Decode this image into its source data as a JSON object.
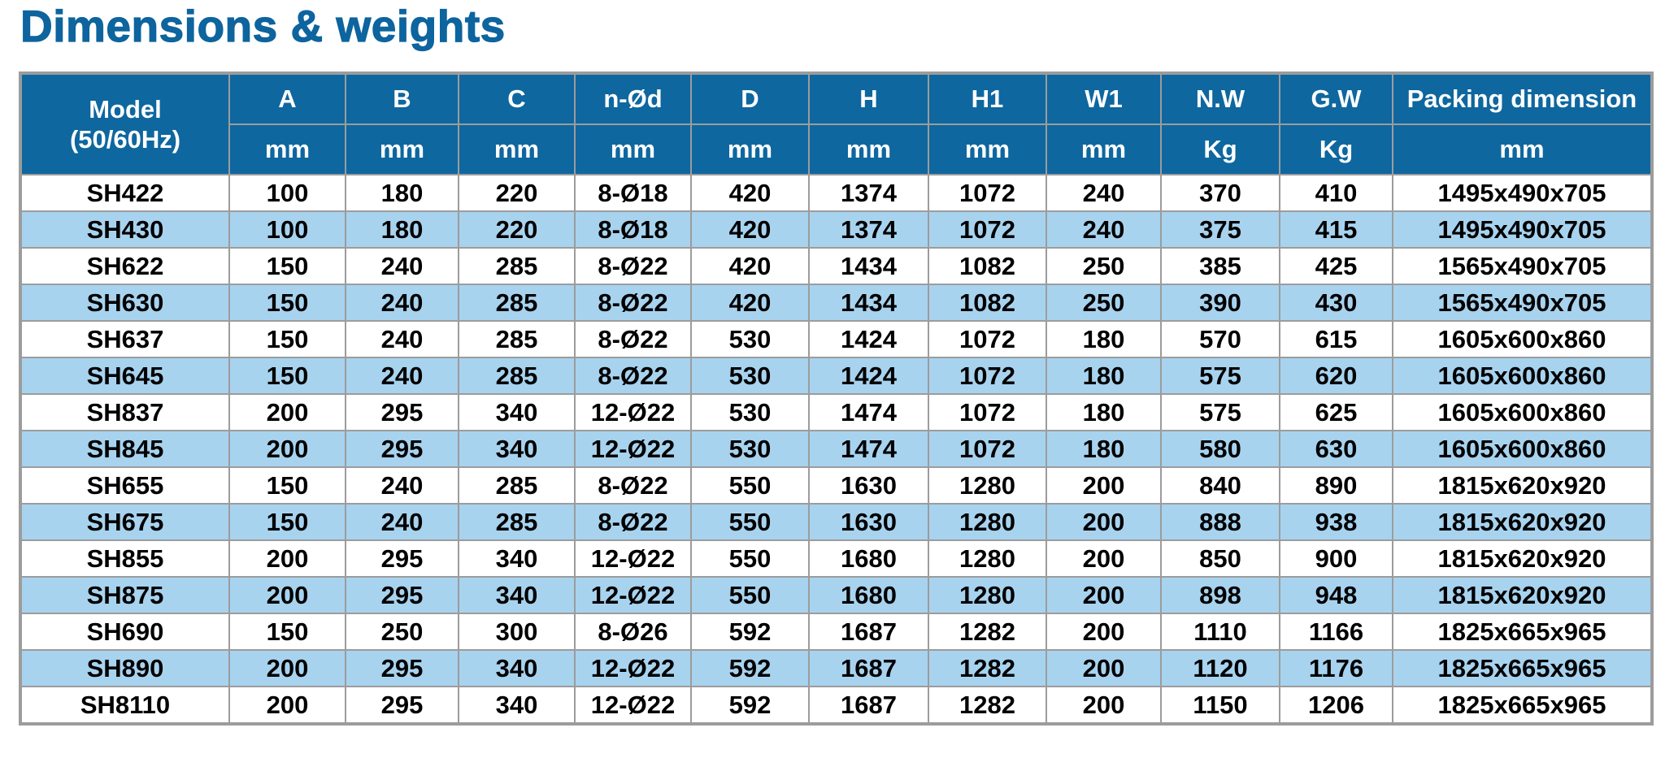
{
  "title": "Dimensions & weights",
  "colors": {
    "title": "#0d649e",
    "header_bg": "#0e679f",
    "header_text": "#ffffff",
    "stripe_bg": "#a8d3ef",
    "row_bg": "#ffffff",
    "border": "#9c9c9c",
    "cell_text": "#000000"
  },
  "table": {
    "model_header": {
      "line1": "Model",
      "line2": "(50/60Hz)"
    },
    "columns": [
      {
        "label": "A",
        "unit": "mm"
      },
      {
        "label": "B",
        "unit": "mm"
      },
      {
        "label": "C",
        "unit": "mm"
      },
      {
        "label": "n-Ød",
        "unit": "mm"
      },
      {
        "label": "D",
        "unit": "mm"
      },
      {
        "label": "H",
        "unit": "mm"
      },
      {
        "label": "H1",
        "unit": "mm"
      },
      {
        "label": "W1",
        "unit": "mm"
      },
      {
        "label": "N.W",
        "unit": "Kg"
      },
      {
        "label": "G.W",
        "unit": "Kg"
      },
      {
        "label": "Packing dimension",
        "unit": "mm"
      }
    ],
    "rows": [
      {
        "model": "SH422",
        "values": [
          "100",
          "180",
          "220",
          "8-Ø18",
          "420",
          "1374",
          "1072",
          "240",
          "370",
          "410",
          "1495x490x705"
        ]
      },
      {
        "model": "SH430",
        "values": [
          "100",
          "180",
          "220",
          "8-Ø18",
          "420",
          "1374",
          "1072",
          "240",
          "375",
          "415",
          "1495x490x705"
        ]
      },
      {
        "model": "SH622",
        "values": [
          "150",
          "240",
          "285",
          "8-Ø22",
          "420",
          "1434",
          "1082",
          "250",
          "385",
          "425",
          "1565x490x705"
        ]
      },
      {
        "model": "SH630",
        "values": [
          "150",
          "240",
          "285",
          "8-Ø22",
          "420",
          "1434",
          "1082",
          "250",
          "390",
          "430",
          "1565x490x705"
        ]
      },
      {
        "model": "SH637",
        "values": [
          "150",
          "240",
          "285",
          "8-Ø22",
          "530",
          "1424",
          "1072",
          "180",
          "570",
          "615",
          "1605x600x860"
        ]
      },
      {
        "model": "SH645",
        "values": [
          "150",
          "240",
          "285",
          "8-Ø22",
          "530",
          "1424",
          "1072",
          "180",
          "575",
          "620",
          "1605x600x860"
        ]
      },
      {
        "model": "SH837",
        "values": [
          "200",
          "295",
          "340",
          "12-Ø22",
          "530",
          "1474",
          "1072",
          "180",
          "575",
          "625",
          "1605x600x860"
        ]
      },
      {
        "model": "SH845",
        "values": [
          "200",
          "295",
          "340",
          "12-Ø22",
          "530",
          "1474",
          "1072",
          "180",
          "580",
          "630",
          "1605x600x860"
        ]
      },
      {
        "model": "SH655",
        "values": [
          "150",
          "240",
          "285",
          "8-Ø22",
          "550",
          "1630",
          "1280",
          "200",
          "840",
          "890",
          "1815x620x920"
        ]
      },
      {
        "model": "SH675",
        "values": [
          "150",
          "240",
          "285",
          "8-Ø22",
          "550",
          "1630",
          "1280",
          "200",
          "888",
          "938",
          "1815x620x920"
        ]
      },
      {
        "model": "SH855",
        "values": [
          "200",
          "295",
          "340",
          "12-Ø22",
          "550",
          "1680",
          "1280",
          "200",
          "850",
          "900",
          "1815x620x920"
        ]
      },
      {
        "model": "SH875",
        "values": [
          "200",
          "295",
          "340",
          "12-Ø22",
          "550",
          "1680",
          "1280",
          "200",
          "898",
          "948",
          "1815x620x920"
        ]
      },
      {
        "model": "SH690",
        "values": [
          "150",
          "250",
          "300",
          "8-Ø26",
          "592",
          "1687",
          "1282",
          "200",
          "1110",
          "1166",
          "1825x665x965"
        ]
      },
      {
        "model": "SH890",
        "values": [
          "200",
          "295",
          "340",
          "12-Ø22",
          "592",
          "1687",
          "1282",
          "200",
          "1120",
          "1176",
          "1825x665x965"
        ]
      },
      {
        "model": "SH8110",
        "values": [
          "200",
          "295",
          "340",
          "12-Ø22",
          "592",
          "1687",
          "1282",
          "200",
          "1150",
          "1206",
          "1825x665x965"
        ]
      }
    ]
  }
}
